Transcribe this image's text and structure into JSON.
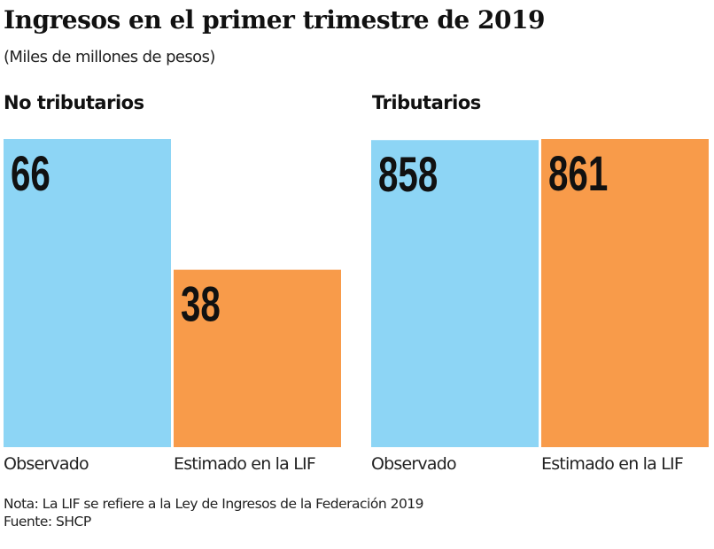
{
  "title": "Ingresos en el primer trimestre de 2019",
  "subtitle": "(Miles de millones de pesos)",
  "note": "Nota: La LIF se refiere a la Ley de Ingresos de la Federación 2019",
  "source": "Fuente: SHCP",
  "colors": {
    "observado": "#8dd5f5",
    "estimado": "#f89b4a"
  },
  "chart_data": [
    {
      "type": "bar",
      "title": "No tributarios",
      "categories": [
        "Observado",
        "Estimado en la LIF"
      ],
      "values": [
        66,
        38
      ],
      "data_labels": [
        "66",
        "38"
      ]
    },
    {
      "type": "bar",
      "title": "Tributarios",
      "categories": [
        "Observado",
        "Estimado en la LIF"
      ],
      "values": [
        858,
        861
      ],
      "data_labels": [
        "858",
        "861"
      ]
    }
  ]
}
